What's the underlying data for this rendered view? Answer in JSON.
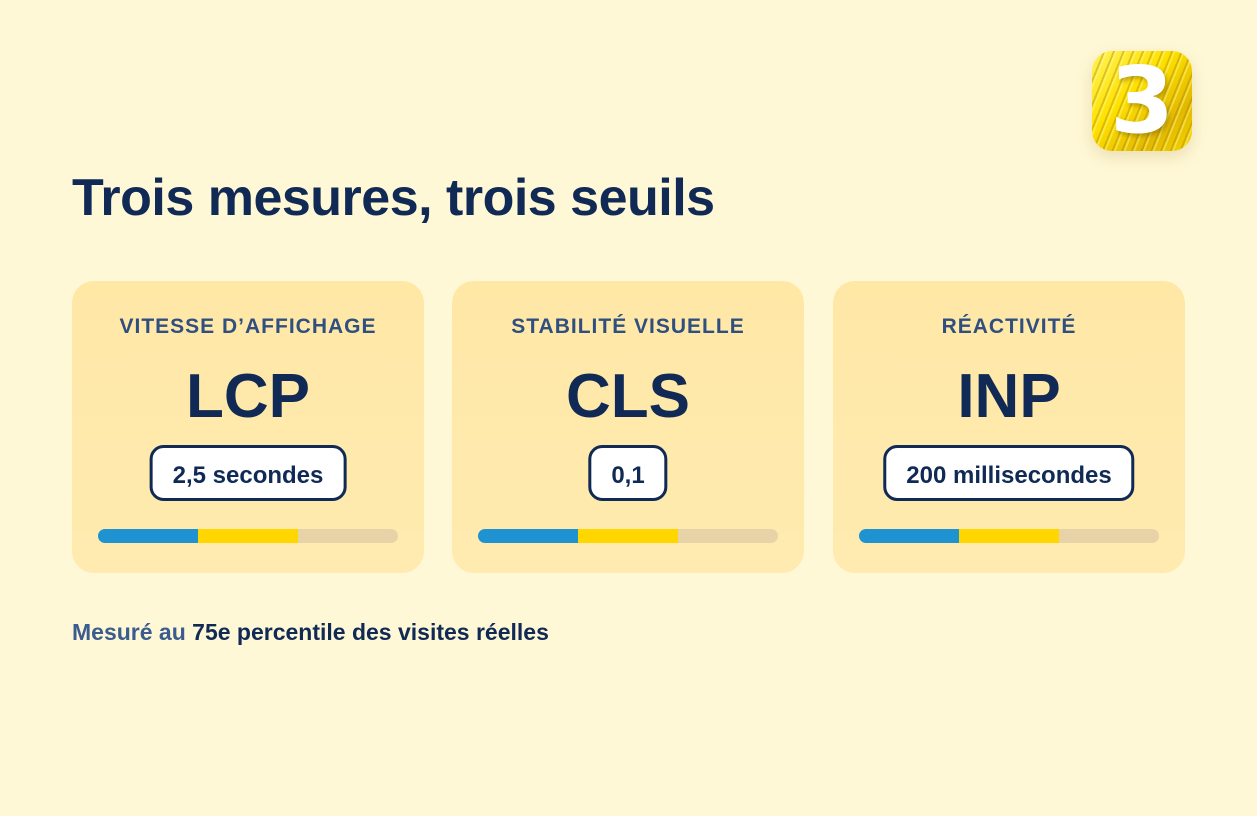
{
  "logo": {
    "digit": "3",
    "colors": {
      "primary": "#ffe100",
      "text": "#ffffff"
    }
  },
  "page_title": "Trois mesures, trois seuils",
  "cards": [
    {
      "category": "VITESSE D’AFFICHAGE",
      "acronym": "LCP",
      "threshold": "2,5 secondes"
    },
    {
      "category": "STABILITÉ VISUELLE",
      "acronym": "CLS",
      "threshold": "0,1"
    },
    {
      "category": "RÉACTIVITÉ",
      "acronym": "INP",
      "threshold": "200 millisecondes"
    }
  ],
  "bar_colors": {
    "good": "#1f93d2",
    "needs_improvement": "#ffd600",
    "poor": "#e8d3a8"
  },
  "footnote": {
    "lead": "Mesuré au",
    "strong": "75e percentile des visites réelles"
  },
  "theme": {
    "background": "#fff8d6",
    "card_background": "#ffe8a6",
    "text_dark": "#102a55",
    "text_muted": "#2f4f80"
  }
}
